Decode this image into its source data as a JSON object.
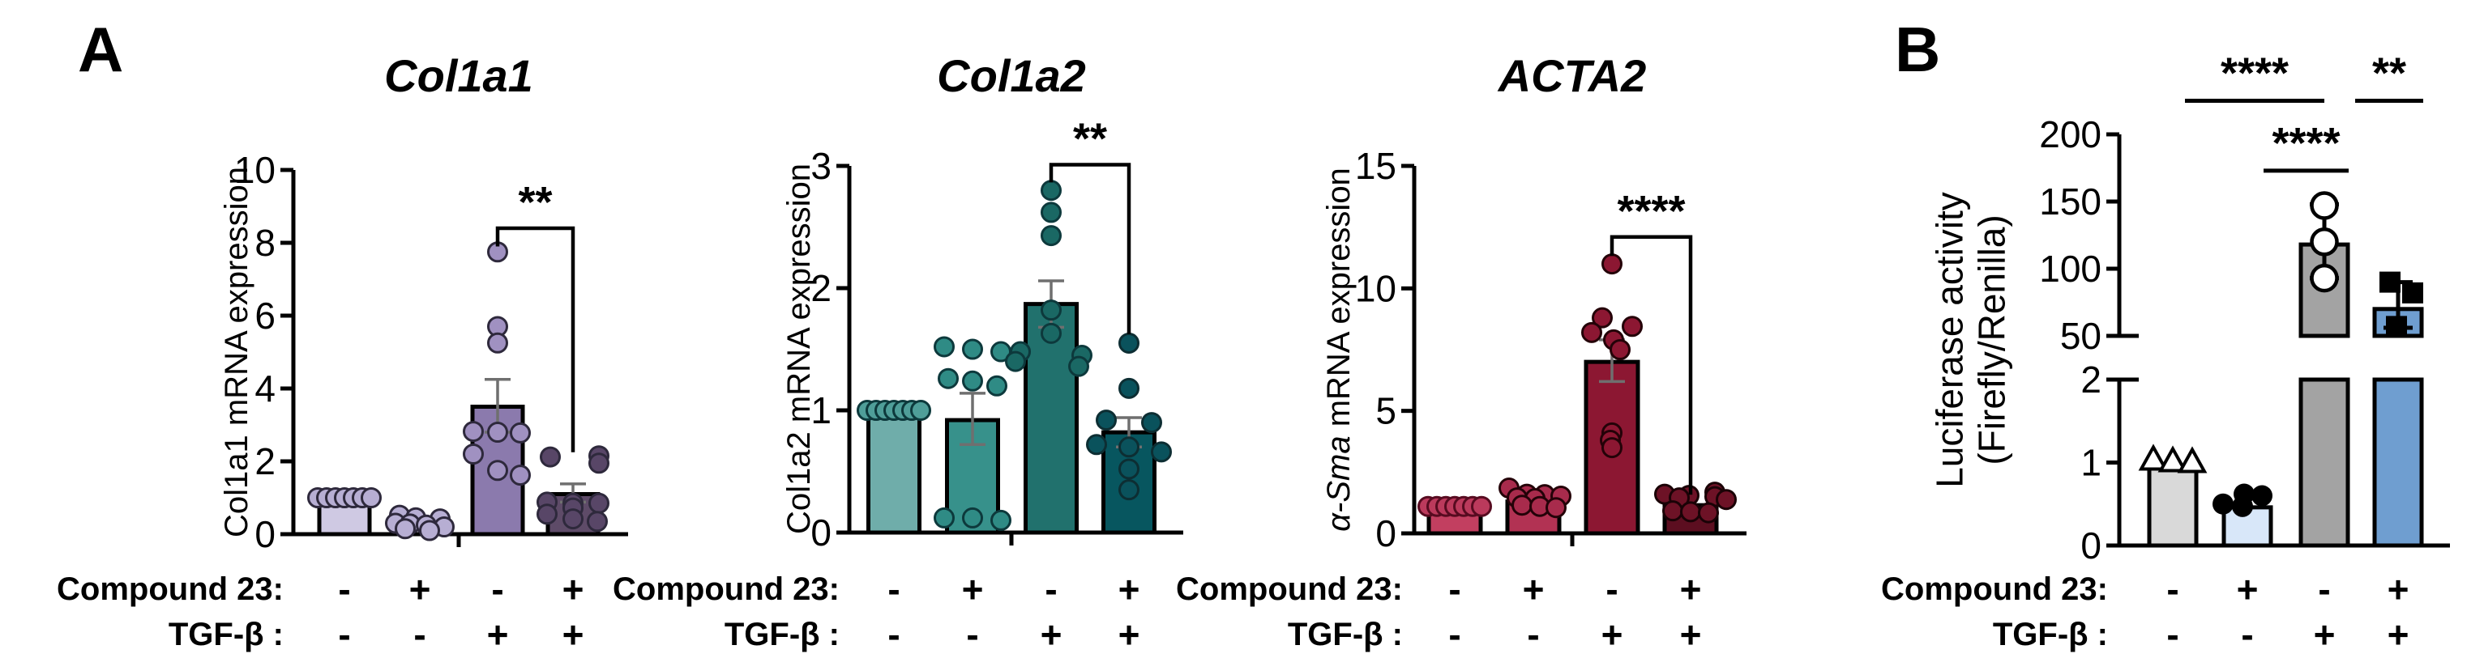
{
  "figure": {
    "panel_a_label": "A",
    "panel_b_label": "B",
    "row1_label": "Compound 23:",
    "row2_label": "TGF-β :"
  },
  "chart_data": [
    {
      "id": "col1a1",
      "type": "bar",
      "title": "Col1a1",
      "ylabel_italic": "",
      "ylabel": "Col1a1 mRNA expression",
      "ylim": [
        0,
        10
      ],
      "yticks": [
        0,
        2,
        4,
        6,
        8,
        10
      ],
      "row1_values": [
        "-",
        "+",
        "-",
        "+"
      ],
      "row2_values": [
        "-",
        "-",
        "+",
        "+"
      ],
      "bars": [
        {
          "mean": 0.95,
          "color": "#cfc9e3",
          "point_style": "circle",
          "point_fill": "#b7aed3",
          "point_stroke": "#2e293c",
          "points": [
            [
              1.0,
              -33
            ],
            [
              1.0,
              -22
            ],
            [
              1.0,
              -11
            ],
            [
              1.0,
              0
            ],
            [
              1.0,
              11
            ],
            [
              1.0,
              22
            ],
            [
              1.0,
              33
            ]
          ]
        },
        {
          "mean": 0.28,
          "color": "#cfc9e3",
          "point_style": "circle",
          "point_fill": "#b7aed3",
          "point_stroke": "#2e293c",
          "points": [
            [
              0.52,
              -25
            ],
            [
              0.45,
              -5
            ],
            [
              0.42,
              25
            ],
            [
              0.3,
              -30
            ],
            [
              0.28,
              -12
            ],
            [
              0.25,
              8
            ],
            [
              0.2,
              30
            ],
            [
              0.15,
              -18
            ],
            [
              0.1,
              12
            ]
          ]
        },
        {
          "mean": 3.5,
          "color": "#8b7aad",
          "err": [
            2.8,
            4.25
          ],
          "point_style": "circle",
          "point_fill": "#a091c1",
          "point_stroke": "#2e293c",
          "points": [
            [
              7.75,
              0
            ],
            [
              5.7,
              0
            ],
            [
              5.25,
              0
            ],
            [
              2.82,
              -30
            ],
            [
              2.8,
              0
            ],
            [
              2.78,
              28
            ],
            [
              2.2,
              -30
            ],
            [
              1.75,
              0
            ],
            [
              1.62,
              28
            ]
          ]
        },
        {
          "mean": 1.1,
          "color": "#5e4b68",
          "err": [
            0.88,
            1.38
          ],
          "point_style": "circle",
          "point_fill": "#584667",
          "point_stroke": "#2e293c",
          "points": [
            [
              2.12,
              -28
            ],
            [
              2.15,
              32
            ],
            [
              1.95,
              32
            ],
            [
              0.88,
              -32
            ],
            [
              0.85,
              0
            ],
            [
              0.85,
              32
            ],
            [
              0.72,
              0
            ],
            [
              0.55,
              -32
            ],
            [
              0.42,
              0
            ],
            [
              0.35,
              30
            ]
          ]
        }
      ],
      "sig": [
        {
          "type": "bracket",
          "from": 2,
          "to": 3,
          "label": "**",
          "y_top": 8.4,
          "drop_left": 7.95,
          "drop_right": 2.3
        }
      ]
    },
    {
      "id": "col1a2",
      "type": "bar",
      "title": "Col1a2",
      "ylabel_italic": "",
      "ylabel": "Col1a2 mRNA expression",
      "ylim": [
        0,
        3
      ],
      "yticks": [
        0,
        1,
        2,
        3
      ],
      "row1_values": [
        "-",
        "+",
        "-",
        "+"
      ],
      "row2_values": [
        "-",
        "-",
        "+",
        "+"
      ],
      "bars": [
        {
          "mean": 1.0,
          "color": "#6fadaa",
          "point_style": "circle",
          "point_fill": "#4f9e99",
          "point_stroke": "#0d393c",
          "points": [
            [
              1.0,
              -33
            ],
            [
              1.0,
              -22
            ],
            [
              1.0,
              -11
            ],
            [
              1.0,
              0
            ],
            [
              1.0,
              11
            ],
            [
              1.0,
              22
            ],
            [
              1.0,
              33
            ]
          ]
        },
        {
          "mean": 0.92,
          "color": "#37918b",
          "err": [
            0.72,
            1.14
          ],
          "point_style": "circle",
          "point_fill": "#2f8b85",
          "point_stroke": "#0d393c",
          "points": [
            [
              1.52,
              -35
            ],
            [
              1.5,
              0
            ],
            [
              1.48,
              35
            ],
            [
              1.26,
              -30
            ],
            [
              1.24,
              0
            ],
            [
              1.2,
              30
            ],
            [
              0.12,
              -35
            ],
            [
              0.12,
              0
            ],
            [
              0.1,
              35
            ]
          ]
        },
        {
          "mean": 1.87,
          "color": "#21716d",
          "err": [
            1.68,
            2.06
          ],
          "point_style": "circle",
          "point_fill": "#1a6864",
          "point_stroke": "#0d393c",
          "points": [
            [
              2.8,
              0
            ],
            [
              2.62,
              0
            ],
            [
              2.43,
              0
            ],
            [
              1.82,
              0
            ],
            [
              1.63,
              0
            ],
            [
              1.48,
              -38
            ],
            [
              1.45,
              38
            ],
            [
              1.4,
              -44
            ],
            [
              1.36,
              34
            ]
          ]
        },
        {
          "mean": 0.82,
          "color": "#07565f",
          "err": [
            0.7,
            0.94
          ],
          "point_style": "circle",
          "point_fill": "#0a525c",
          "point_stroke": "#0d2e33",
          "points": [
            [
              1.55,
              0
            ],
            [
              1.18,
              0
            ],
            [
              0.92,
              -28
            ],
            [
              0.9,
              28
            ],
            [
              0.72,
              -40
            ],
            [
              0.7,
              0
            ],
            [
              0.66,
              40
            ],
            [
              0.52,
              0
            ],
            [
              0.35,
              0
            ]
          ]
        }
      ],
      "sig": [
        {
          "type": "bracket",
          "from": 2,
          "to": 3,
          "label": "**",
          "y_top": 3.01,
          "drop_left": 2.88,
          "drop_right": 1.64
        }
      ]
    },
    {
      "id": "acta2",
      "type": "bar",
      "title": "ACTA2",
      "ylabel_italic": "α-Sma",
      "ylabel": " mRNA expression",
      "ylim": [
        0,
        15
      ],
      "yticks": [
        0,
        5,
        10,
        15
      ],
      "row1_values": [
        "-",
        "+",
        "-",
        "+"
      ],
      "row2_values": [
        "-",
        "-",
        "+",
        "+"
      ],
      "bars": [
        {
          "mean": 1.1,
          "color": "#c23f60",
          "point_style": "circle",
          "point_fill": "#bb3a5c",
          "point_stroke": "#570b20",
          "points": [
            [
              1.1,
              -33
            ],
            [
              1.1,
              -22
            ],
            [
              1.1,
              -11
            ],
            [
              1.1,
              0
            ],
            [
              1.1,
              11
            ],
            [
              1.1,
              22
            ],
            [
              1.1,
              33
            ]
          ]
        },
        {
          "mean": 1.3,
          "color": "#b23253",
          "point_style": "circle",
          "point_fill": "#a82b4c",
          "point_stroke": "#240208",
          "points": [
            [
              1.85,
              -30
            ],
            [
              1.6,
              -8
            ],
            [
              1.58,
              14
            ],
            [
              1.52,
              34
            ],
            [
              1.45,
              -20
            ],
            [
              1.42,
              2
            ],
            [
              1.15,
              -14
            ],
            [
              1.1,
              8
            ],
            [
              1.05,
              28
            ]
          ]
        },
        {
          "mean": 7.0,
          "color": "#8c1732",
          "err": [
            6.2,
            7.9
          ],
          "point_style": "circle",
          "point_fill": "#8c1732",
          "point_stroke": "#240208",
          "points": [
            [
              11.0,
              0
            ],
            [
              8.8,
              -12
            ],
            [
              8.45,
              25
            ],
            [
              8.2,
              -25
            ],
            [
              7.9,
              2
            ],
            [
              7.5,
              10
            ],
            [
              4.1,
              0
            ],
            [
              3.8,
              -2
            ],
            [
              3.5,
              0
            ]
          ]
        },
        {
          "mean": 1.15,
          "color": "#5c0e20",
          "point_style": "circle",
          "point_fill": "#6d1226",
          "point_stroke": "#1a0206",
          "points": [
            [
              1.68,
              30
            ],
            [
              1.6,
              -32
            ],
            [
              1.55,
              -2
            ],
            [
              1.5,
              30
            ],
            [
              1.45,
              -14
            ],
            [
              1.38,
              44
            ],
            [
              0.92,
              -22
            ],
            [
              0.88,
              0
            ],
            [
              0.84,
              22
            ]
          ]
        }
      ],
      "sig": [
        {
          "type": "bracket",
          "from": 2,
          "to": 3,
          "label": "****",
          "y_top": 12.1,
          "drop_left": 11.4,
          "drop_right": 1.65
        }
      ]
    },
    {
      "id": "luciferase",
      "type": "bar",
      "title": "",
      "ylabel_lines": [
        "Luciferase activity",
        "(Firefly/Renilla)"
      ],
      "ylim": [
        0,
        200
      ],
      "segments": [
        {
          "range": [
            0,
            2
          ],
          "ticks": [
            0,
            1,
            2
          ]
        },
        {
          "range": [
            50,
            200
          ],
          "ticks": [
            50,
            100,
            150,
            200
          ]
        }
      ],
      "row1_values": [
        "-",
        "+",
        "-",
        "+"
      ],
      "row2_values": [
        "-",
        "-",
        "+",
        "+"
      ],
      "bars": [
        {
          "mean": 0.93,
          "color": "#d9d9d9",
          "point_style": "triangle-open",
          "points": [
            [
              1.02,
              -24
            ],
            [
              1.0,
              0
            ],
            [
              0.99,
              24
            ]
          ]
        },
        {
          "mean": 0.46,
          "color": "#d8e7f9",
          "point_style": "circle-filled",
          "points": [
            [
              0.62,
              -4
            ],
            [
              0.6,
              18
            ],
            [
              0.5,
              -30
            ],
            [
              0.47,
              -6
            ]
          ]
        },
        {
          "mean": 118,
          "color": "#a3a3a3",
          "err": [
            93,
            148
          ],
          "point_style": "circle-open",
          "points": [
            [
              147,
              0
            ],
            [
              120,
              0
            ],
            [
              93,
              0
            ]
          ]
        },
        {
          "mean": 70,
          "color": "#6f9ed0",
          "err": [
            56,
            90
          ],
          "point_style": "square-filled",
          "points": [
            [
              90,
              -10
            ],
            [
              82,
              18
            ],
            [
              57,
              -2
            ]
          ]
        }
      ],
      "sig": [
        {
          "type": "line",
          "from": 0,
          "to": 2,
          "label": "****",
          "y_top": 225
        },
        {
          "type": "line",
          "from": 2,
          "to": 3,
          "label": "**",
          "y_top": 225
        },
        {
          "type": "line",
          "from": 1,
          "to": 2,
          "label": "****",
          "y_top": 173
        }
      ]
    }
  ]
}
